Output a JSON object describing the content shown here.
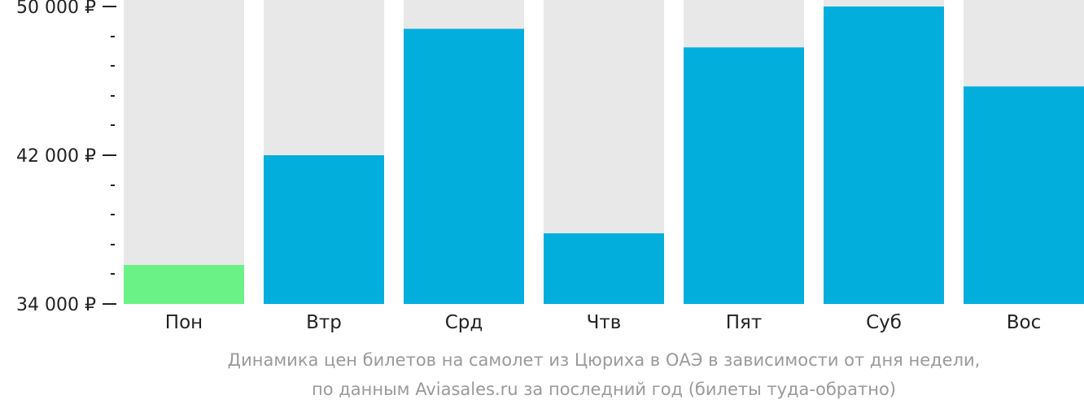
{
  "chart_data": {
    "type": "bar",
    "categories": [
      "Пон",
      "Втр",
      "Срд",
      "Чтв",
      "Пят",
      "Суб",
      "Вос"
    ],
    "values": [
      36100,
      42000,
      48800,
      37800,
      47800,
      50000,
      45700
    ],
    "highlight_index": 0,
    "ylim": [
      34000,
      50000
    ],
    "yticks": [
      {
        "value": 50000,
        "label": "50 000 ₽"
      },
      {
        "value": 42000,
        "label": "42 000 ₽"
      },
      {
        "value": 34000,
        "label": "34 000 ₽"
      }
    ],
    "minor_tick_step": 1600,
    "title": "Динамика цен билетов на самолет из Цюриха в ОАЭ в зависимости от дня недели,",
    "subtitle": "по данным Aviasales.ru за последний год (билеты туда-обратно)",
    "colors": {
      "bar": "#02aedc",
      "highlight": "#6bf286",
      "bar_background": "#e8e8e8",
      "axis": "#222222",
      "caption": "#9a9a9a"
    }
  }
}
